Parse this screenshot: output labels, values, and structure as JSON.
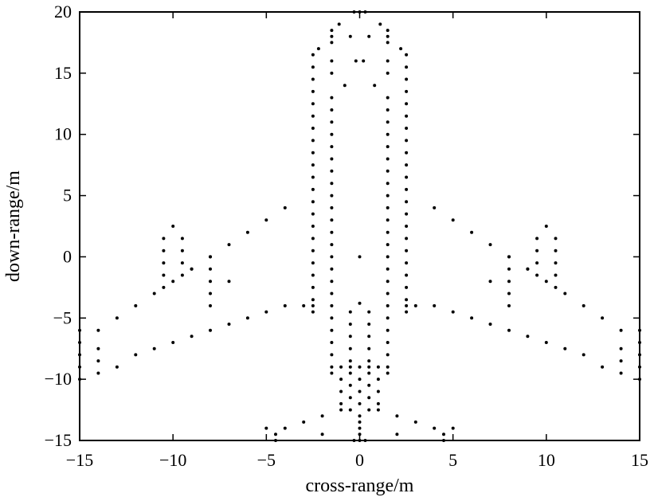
{
  "chart_data": {
    "type": "scatter",
    "title": "",
    "xlabel": "cross-range/m",
    "ylabel": "down-range/m",
    "xlim": [
      -15,
      15
    ],
    "ylim": [
      -15,
      20
    ],
    "xticks": [
      -15,
      -10,
      -5,
      0,
      5,
      10,
      15
    ],
    "yticks": [
      -15,
      -10,
      -5,
      0,
      5,
      10,
      15,
      20
    ],
    "xtick_labels": [
      "−15",
      "−10",
      "−5",
      "0",
      "5",
      "10",
      "15"
    ],
    "ytick_labels": [
      "−15",
      "−10",
      "−5",
      "0",
      "5",
      "10",
      "15",
      "20"
    ],
    "grid": false,
    "legend": "none",
    "series": [
      {
        "color": "#000000",
        "points": [
          [
            -0.3,
            20
          ],
          [
            0,
            20
          ],
          [
            0.3,
            20
          ],
          [
            -1.1,
            19
          ],
          [
            1.1,
            19
          ],
          [
            -1.5,
            18.5
          ],
          [
            1.5,
            18.5
          ],
          [
            -1.5,
            18
          ],
          [
            1.5,
            18
          ],
          [
            -0.5,
            18
          ],
          [
            0.5,
            18
          ],
          [
            -1.5,
            17.5
          ],
          [
            1.5,
            17.5
          ],
          [
            -2.2,
            17
          ],
          [
            2.2,
            17
          ],
          [
            -2.5,
            16.5
          ],
          [
            2.5,
            16.5
          ],
          [
            -0.2,
            16
          ],
          [
            0.2,
            16
          ],
          [
            -1.5,
            16
          ],
          [
            1.5,
            16
          ],
          [
            -2.5,
            15.5
          ],
          [
            2.5,
            15.5
          ],
          [
            -1.5,
            15
          ],
          [
            1.5,
            15
          ],
          [
            -2.5,
            14.5
          ],
          [
            2.5,
            14.5
          ],
          [
            -0.8,
            14
          ],
          [
            0.8,
            14
          ],
          [
            -2.5,
            13.5
          ],
          [
            2.5,
            13.5
          ],
          [
            -1.5,
            13
          ],
          [
            1.5,
            13
          ],
          [
            -2.5,
            12.5
          ],
          [
            2.5,
            12.5
          ],
          [
            -1.5,
            12
          ],
          [
            1.5,
            12
          ],
          [
            -2.5,
            11.5
          ],
          [
            2.5,
            11.5
          ],
          [
            -1.5,
            11
          ],
          [
            1.5,
            11
          ],
          [
            -2.5,
            10.5
          ],
          [
            2.5,
            10.5
          ],
          [
            -1.5,
            10
          ],
          [
            1.5,
            10
          ],
          [
            -2.5,
            9.5
          ],
          [
            2.5,
            9.5
          ],
          [
            -1.5,
            9
          ],
          [
            1.5,
            9
          ],
          [
            -2.5,
            8.5
          ],
          [
            2.5,
            8.5
          ],
          [
            -1.5,
            8
          ],
          [
            1.5,
            8
          ],
          [
            -2.5,
            7.5
          ],
          [
            2.5,
            7.5
          ],
          [
            -1.5,
            7
          ],
          [
            1.5,
            7
          ],
          [
            -2.5,
            6.5
          ],
          [
            2.5,
            6.5
          ],
          [
            -1.5,
            6
          ],
          [
            1.5,
            6
          ],
          [
            -2.5,
            5.5
          ],
          [
            2.5,
            5.5
          ],
          [
            -1.5,
            5
          ],
          [
            1.5,
            5
          ],
          [
            -2.5,
            4.5
          ],
          [
            2.5,
            4.5
          ],
          [
            -1.5,
            4
          ],
          [
            1.5,
            4
          ],
          [
            -2.5,
            3.5
          ],
          [
            2.5,
            3.5
          ],
          [
            -1.5,
            3
          ],
          [
            1.5,
            3
          ],
          [
            -2.5,
            2.5
          ],
          [
            2.5,
            2.5
          ],
          [
            -1.5,
            2
          ],
          [
            1.5,
            2
          ],
          [
            -2.5,
            1.5
          ],
          [
            2.5,
            1.5
          ],
          [
            -1.5,
            1
          ],
          [
            1.5,
            1
          ],
          [
            -2.5,
            0.5
          ],
          [
            2.5,
            0.5
          ],
          [
            -1.5,
            0
          ],
          [
            1.5,
            0
          ],
          [
            0,
            0
          ],
          [
            -2.5,
            -0.5
          ],
          [
            2.5,
            -0.5
          ],
          [
            -1.5,
            -1
          ],
          [
            1.5,
            -1
          ],
          [
            -2.5,
            -1.5
          ],
          [
            2.5,
            -1.5
          ],
          [
            -1.5,
            -2
          ],
          [
            1.5,
            -2
          ],
          [
            -2.5,
            -2.5
          ],
          [
            2.5,
            -2.5
          ],
          [
            -1.5,
            -3
          ],
          [
            1.5,
            -3
          ],
          [
            -2.5,
            -3.5
          ],
          [
            2.5,
            -3.5
          ],
          [
            0,
            -3.8
          ],
          [
            -1.5,
            -4
          ],
          [
            1.5,
            -4
          ],
          [
            -2.5,
            -4.5
          ],
          [
            2.5,
            -4.5
          ],
          [
            -0.5,
            -4.5
          ],
          [
            0.5,
            -4.5
          ],
          [
            -1.5,
            -5
          ],
          [
            1.5,
            -5
          ],
          [
            -0.5,
            -5.5
          ],
          [
            0.5,
            -5.5
          ],
          [
            -1.5,
            -6
          ],
          [
            1.5,
            -6
          ],
          [
            -0.5,
            -6.5
          ],
          [
            0.5,
            -6.5
          ],
          [
            -1.5,
            -7
          ],
          [
            1.5,
            -7
          ],
          [
            -0.5,
            -7.5
          ],
          [
            0.5,
            -7.5
          ],
          [
            -1.5,
            -8
          ],
          [
            1.5,
            -8
          ],
          [
            -0.5,
            -8.5
          ],
          [
            0.5,
            -8.5
          ],
          [
            -1.5,
            -9
          ],
          [
            1.5,
            -9
          ],
          [
            -0.5,
            -9
          ],
          [
            0.5,
            -9
          ],
          [
            0,
            -9
          ],
          [
            -1,
            -9
          ],
          [
            1,
            -9
          ],
          [
            -1.5,
            -9.5
          ],
          [
            1.5,
            -9.5
          ],
          [
            -0.5,
            -9.5
          ],
          [
            0.5,
            -9.5
          ],
          [
            -1,
            -10
          ],
          [
            1,
            -10
          ],
          [
            0,
            -10
          ],
          [
            -0.5,
            -10.5
          ],
          [
            0.5,
            -10.5
          ],
          [
            -1,
            -11
          ],
          [
            1,
            -11
          ],
          [
            0,
            -11
          ],
          [
            -0.5,
            -11.5
          ],
          [
            0.5,
            -11.5
          ],
          [
            -1,
            -12
          ],
          [
            1,
            -12
          ],
          [
            0,
            -12
          ],
          [
            -0.5,
            -12.5
          ],
          [
            0.5,
            -12.5
          ],
          [
            0,
            -13
          ],
          [
            0,
            -13.5
          ],
          [
            0,
            -14
          ],
          [
            0,
            -14.5
          ],
          [
            -0.3,
            -15
          ],
          [
            0,
            -15
          ],
          [
            0.3,
            -15
          ],
          [
            -2.5,
            -4
          ],
          [
            -3,
            -4
          ],
          [
            -4,
            -4
          ],
          [
            -5,
            -4.5
          ],
          [
            -6,
            -5
          ],
          [
            -7,
            -5.5
          ],
          [
            -8,
            -6
          ],
          [
            -9,
            -6.5
          ],
          [
            -10,
            -7
          ],
          [
            -11,
            -7.5
          ],
          [
            -12,
            -8
          ],
          [
            -13,
            -9
          ],
          [
            -14,
            -9.5
          ],
          [
            2.5,
            -4
          ],
          [
            3,
            -4
          ],
          [
            4,
            -4
          ],
          [
            5,
            -4.5
          ],
          [
            6,
            -5
          ],
          [
            7,
            -5.5
          ],
          [
            8,
            -6
          ],
          [
            9,
            -6.5
          ],
          [
            10,
            -7
          ],
          [
            11,
            -7.5
          ],
          [
            12,
            -8
          ],
          [
            13,
            -9
          ],
          [
            14,
            -9.5
          ],
          [
            -4,
            4
          ],
          [
            -5,
            3
          ],
          [
            -6,
            2
          ],
          [
            -7,
            1
          ],
          [
            -8,
            0
          ],
          [
            -9,
            -1
          ],
          [
            -10,
            -2
          ],
          [
            -11,
            -3
          ],
          [
            -12,
            -4
          ],
          [
            -13,
            -5
          ],
          [
            -14,
            -6
          ],
          [
            4,
            4
          ],
          [
            5,
            3
          ],
          [
            6,
            2
          ],
          [
            7,
            1
          ],
          [
            8,
            0
          ],
          [
            9,
            -1
          ],
          [
            10,
            -2
          ],
          [
            11,
            -3
          ],
          [
            12,
            -4
          ],
          [
            13,
            -5
          ],
          [
            14,
            -6
          ],
          [
            -10.5,
            1.5
          ],
          [
            -10.5,
            0.5
          ],
          [
            -10.5,
            -0.5
          ],
          [
            -10.5,
            -1.5
          ],
          [
            -10.5,
            -2.5
          ],
          [
            -9.5,
            1.5
          ],
          [
            -9.5,
            0.5
          ],
          [
            -9.5,
            -0.5
          ],
          [
            -9.5,
            -1.5
          ],
          [
            -10,
            2.5
          ],
          [
            -9,
            -1
          ],
          [
            10.5,
            1.5
          ],
          [
            10.5,
            0.5
          ],
          [
            10.5,
            -0.5
          ],
          [
            10.5,
            -1.5
          ],
          [
            10.5,
            -2.5
          ],
          [
            9.5,
            1.5
          ],
          [
            9.5,
            0.5
          ],
          [
            9.5,
            -0.5
          ],
          [
            9.5,
            -1.5
          ],
          [
            10,
            2.5
          ],
          [
            9,
            -1
          ],
          [
            -8,
            0
          ],
          [
            -8,
            -1
          ],
          [
            -8,
            -2
          ],
          [
            -8,
            -3
          ],
          [
            -8,
            -4
          ],
          [
            -7,
            -2
          ],
          [
            8,
            0
          ],
          [
            8,
            -1
          ],
          [
            8,
            -2
          ],
          [
            8,
            -3
          ],
          [
            8,
            -4
          ],
          [
            7,
            -2
          ],
          [
            -15,
            -6
          ],
          [
            -15,
            -7
          ],
          [
            -15,
            -8
          ],
          [
            -15,
            -9
          ],
          [
            -15,
            -10
          ],
          [
            -14,
            -7.5
          ],
          [
            -14,
            -8.5
          ],
          [
            15,
            -6
          ],
          [
            15,
            -7
          ],
          [
            15,
            -8
          ],
          [
            15,
            -9
          ],
          [
            15,
            -10
          ],
          [
            14,
            -7.5
          ],
          [
            14,
            -8.5
          ],
          [
            -4.5,
            -14.5
          ],
          [
            -4,
            -14
          ],
          [
            -3,
            -13.5
          ],
          [
            -2,
            -13
          ],
          [
            -1,
            -12.5
          ],
          [
            -5,
            -14
          ],
          [
            -4.5,
            -15
          ],
          [
            -2,
            -14.5
          ],
          [
            4.5,
            -14.5
          ],
          [
            4,
            -14
          ],
          [
            3,
            -13.5
          ],
          [
            2,
            -13
          ],
          [
            1,
            -12.5
          ],
          [
            5,
            -14
          ],
          [
            4.5,
            -15
          ],
          [
            2,
            -14.5
          ]
        ]
      }
    ]
  }
}
